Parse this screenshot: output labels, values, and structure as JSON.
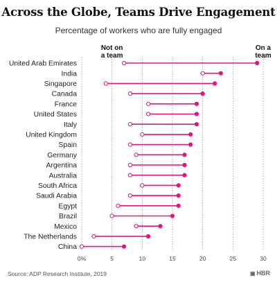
{
  "header": {
    "title": "Across the Globe, Teams Drive Engagement",
    "subtitle": "Percentage of workers who are fully engaged"
  },
  "footer": {
    "source": "Source: ADP Research Institute, 2019",
    "brand": "HBR",
    "brand_icon": "hbr-logo-icon"
  },
  "colors": {
    "accent": "#e2157f",
    "text": "#222222",
    "grid": "#9a9a9a"
  },
  "chart_data": {
    "type": "dot-plot",
    "ylabel": "",
    "xlabel": "",
    "xlim": [
      0,
      30
    ],
    "grid": true,
    "legend": "annotations-top",
    "x_ticks": [
      {
        "value": 0,
        "label": "0%"
      },
      {
        "value": 5,
        "label": "5"
      },
      {
        "value": 10,
        "label": "10"
      },
      {
        "value": 15,
        "label": "15"
      },
      {
        "value": 20,
        "label": "20"
      },
      {
        "value": 25,
        "label": "25"
      },
      {
        "value": 30,
        "label": "30"
      }
    ],
    "annotations": {
      "not_on_team": [
        "Not on",
        "a team"
      ],
      "on_team": [
        "On a",
        "team"
      ]
    },
    "categories": [
      "United Arab Emirates",
      "India",
      "Singapore",
      "Canada",
      "France",
      "United States",
      "Italy",
      "United Kingdom",
      "Spain",
      "Germany",
      "Argentina",
      "Australia",
      "South Africa",
      "Saudi Arabia",
      "Egypt",
      "Brazil",
      "Mexico",
      "The Netherlands",
      "China"
    ],
    "series": [
      {
        "name": "Not on a team",
        "values": [
          7,
          20,
          4,
          8,
          11,
          11,
          8,
          10,
          8,
          9,
          8,
          8,
          10,
          8,
          6,
          5,
          9,
          2,
          0
        ]
      },
      {
        "name": "On a team",
        "values": [
          29,
          23,
          22,
          20,
          19,
          19,
          19,
          18,
          18,
          17,
          17,
          17,
          16,
          16,
          16,
          15,
          13,
          11,
          7
        ]
      }
    ]
  }
}
